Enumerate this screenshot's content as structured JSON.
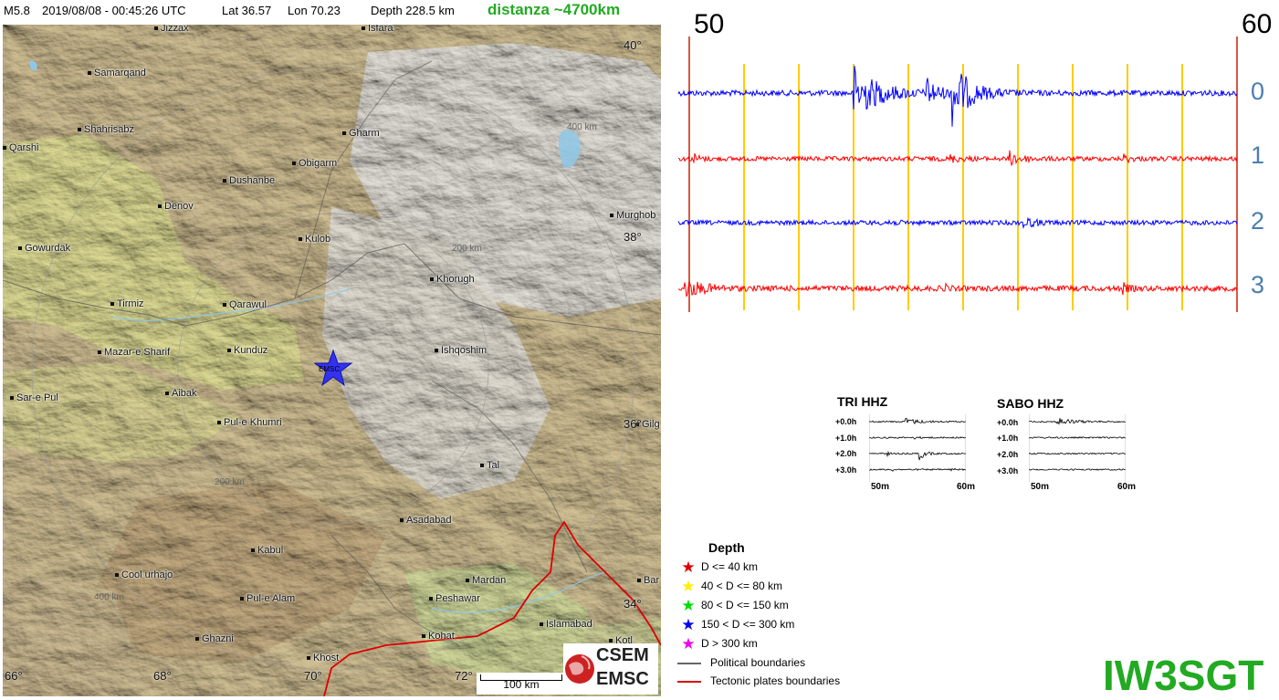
{
  "header": {
    "magnitude": "M5.8",
    "datetime": "2019/08/08 - 00:45:26 UTC",
    "lat": "Lat 36.57",
    "lon": "Lon  70.23",
    "depth": "Depth 228.5 km",
    "distance": "distanza ~4700km"
  },
  "map": {
    "cities": [
      {
        "name": "Jizzax"
      },
      {
        "name": "Isfara"
      },
      {
        "name": "Samarqand"
      },
      {
        "name": "Shahrisabz"
      },
      {
        "name": "Gharm"
      },
      {
        "name": "Obigarm"
      },
      {
        "name": "Qarshi"
      },
      {
        "name": "Dushanbe"
      },
      {
        "name": "Denov"
      },
      {
        "name": "Murghob"
      },
      {
        "name": "Gowurdak"
      },
      {
        "name": "Kulob"
      },
      {
        "name": "Khorugh"
      },
      {
        "name": "Tirmiz"
      },
      {
        "name": "Qarawul"
      },
      {
        "name": "Mazar-e Sharif"
      },
      {
        "name": "Kunduz"
      },
      {
        "name": "Ishqoshim"
      },
      {
        "name": "Sar-e Pul"
      },
      {
        "name": "Aibak"
      },
      {
        "name": "Pul-e Khumri"
      },
      {
        "name": "Gilg"
      },
      {
        "name": "Tal"
      },
      {
        "name": "Asadabad"
      },
      {
        "name": "Kabul"
      },
      {
        "name": "Cool urhajo"
      },
      {
        "name": "Mardan"
      },
      {
        "name": "Bar"
      },
      {
        "name": "Peshawar"
      },
      {
        "name": "Pul-e  Alam"
      },
      {
        "name": "Islamabad"
      },
      {
        "name": "Kohat"
      },
      {
        "name": "Ghazni"
      },
      {
        "name": "Khost"
      },
      {
        "name": "Kotl"
      }
    ],
    "lat_labels": [
      "40°",
      "38°",
      "36°",
      "34°"
    ],
    "lon_labels": [
      "66°",
      "68°",
      "70°",
      "72°"
    ],
    "radius_labels": [
      "400 km",
      "200 km",
      "200 km",
      "400 km"
    ],
    "epicenter_label": "EMSC",
    "scale_label": "100 km",
    "logo": {
      "line1": "CSEM",
      "line2": "EMSC"
    }
  },
  "seismogram": {
    "start_label": "50",
    "end_label": "60",
    "channels": [
      "0",
      "1",
      "2",
      "3"
    ],
    "colors": {
      "blue": "#0000ff",
      "red": "#ff0000",
      "grid": "#ffcc00"
    }
  },
  "stations": [
    {
      "name": "TRI HHZ",
      "rows": [
        "+0.0h",
        "+1.0h",
        "+2.0h",
        "+3.0h"
      ],
      "axis_start": "50m",
      "axis_end": "60m"
    },
    {
      "name": "SABO HHZ",
      "rows": [
        "+0.0h",
        "+1.0h",
        "+2.0h",
        "+3.0h"
      ],
      "axis_start": "50m",
      "axis_end": "60m"
    }
  ],
  "legend": {
    "title": "Depth",
    "depth_items": [
      {
        "label": "D <= 40 km",
        "color": "#dd0000"
      },
      {
        "label": "40 < D <= 80 km",
        "color": "#ffee00"
      },
      {
        "label": "80 < D <= 150 km",
        "color": "#00dd00"
      },
      {
        "label": "150 < D <= 300 km",
        "color": "#0000ee"
      },
      {
        "label": "D > 300 km",
        "color": "#ee00ee"
      }
    ],
    "line_items": [
      {
        "label": "Political boundaries",
        "color": "#666666"
      },
      {
        "label": "Tectonic plates boundaries",
        "color": "#dd0000"
      }
    ]
  },
  "callsign": "IW3SGT"
}
